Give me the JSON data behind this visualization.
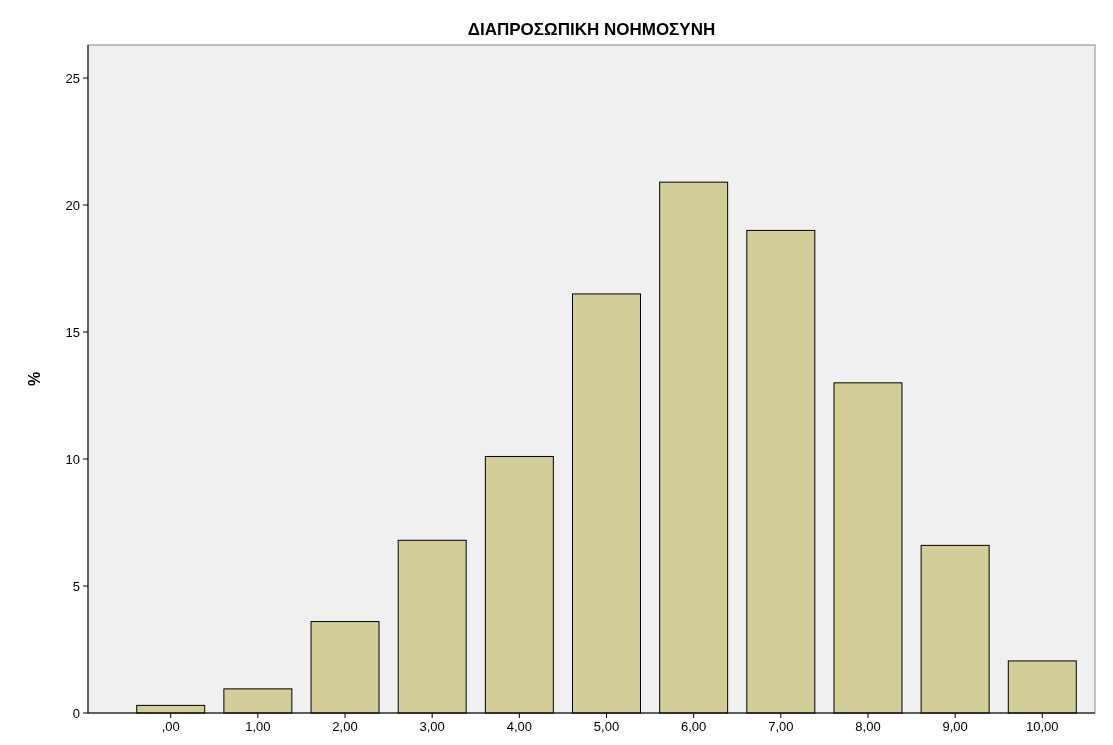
{
  "chart_data": {
    "type": "bar",
    "title": "ΔΙΑΠΡΟΣΩΠΙΚΗ ΝΟΗΜΟΣΥΝΗ",
    "ylabel": "%",
    "categories": [
      ",00",
      "1,00",
      "2,00",
      "3,00",
      "4,00",
      "5,00",
      "6,00",
      "7,00",
      "8,00",
      "9,00",
      "10,00"
    ],
    "values": [
      0.3,
      0.95,
      3.6,
      6.8,
      10.1,
      16.5,
      20.9,
      19.0,
      13.0,
      6.6,
      2.05
    ],
    "color": "#d3ce98",
    "ylim": [
      0,
      26.3
    ],
    "yticks": [
      0,
      5,
      10,
      15,
      20,
      25
    ],
    "grid": false
  }
}
